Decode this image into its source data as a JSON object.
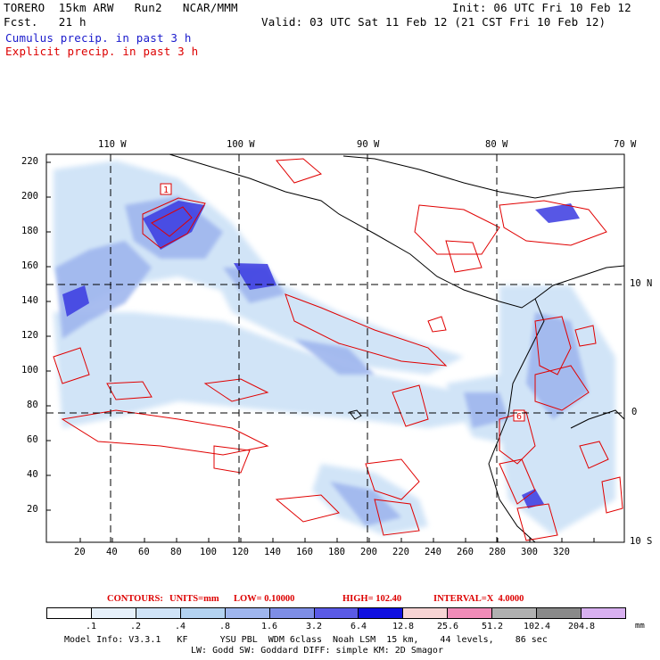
{
  "header": {
    "model": "TORERO  15km ARW   Run2   NCAR/MMM",
    "init": "Init: 06 UTC Fri 10 Feb 12",
    "fcst": "Fcst.   21 h",
    "valid": "Valid: 03 UTC Sat 11 Feb 12 (21 CST Fri 10 Feb 12)",
    "cumulus": "Cumulus precip. in past 3 h",
    "explicit": "Explicit precip. in past 3 h"
  },
  "map": {
    "lon_labels": [
      "110 W",
      "100 W",
      "90 W",
      "80 W",
      "70 W"
    ],
    "lat_labels": [
      "10 N",
      "0",
      "10 S"
    ],
    "y_ticks": [
      "220",
      "200",
      "180",
      "160",
      "140",
      "120",
      "100",
      "80",
      "60",
      "40",
      "20"
    ],
    "x_ticks": [
      "20",
      "40",
      "60",
      "80",
      "100",
      "120",
      "140",
      "160",
      "180",
      "200",
      "220",
      "240",
      "260",
      "280",
      "300",
      "320"
    ],
    "contour_label_a": "1",
    "contour_label_b": "6"
  },
  "contours_info": {
    "contours": "CONTOURS:",
    "units": "UNITS=mm",
    "low": "LOW= 0.10000",
    "high": "HIGH= 102.40",
    "interval": "INTERVAL=X  4.0000"
  },
  "colorbar": {
    "labels": [
      ".1",
      ".2",
      ".4",
      ".8",
      "1.6",
      "3.2",
      "6.4",
      "12.8",
      "25.6",
      "51.2",
      "102.4",
      "204.8"
    ],
    "unit": "mm",
    "colors": [
      "#ffffff",
      "#e6f0fa",
      "#cfe3f7",
      "#b3d2f0",
      "#9fb6ee",
      "#7e8ee6",
      "#5a5ae6",
      "#1010e0",
      "#f7d4d4",
      "#f08cb8",
      "#b0b0b0",
      "#8a8a8a",
      "#d8b0f0"
    ]
  },
  "footer": {
    "line1": "Model Info: V3.3.1   KF      YSU PBL  WDM 6class  Noah LSM  15 km,    44 levels,    86 sec",
    "line2": "LW: Godd SW: Goddard DIFF: simple KM: 2D Smagor"
  }
}
